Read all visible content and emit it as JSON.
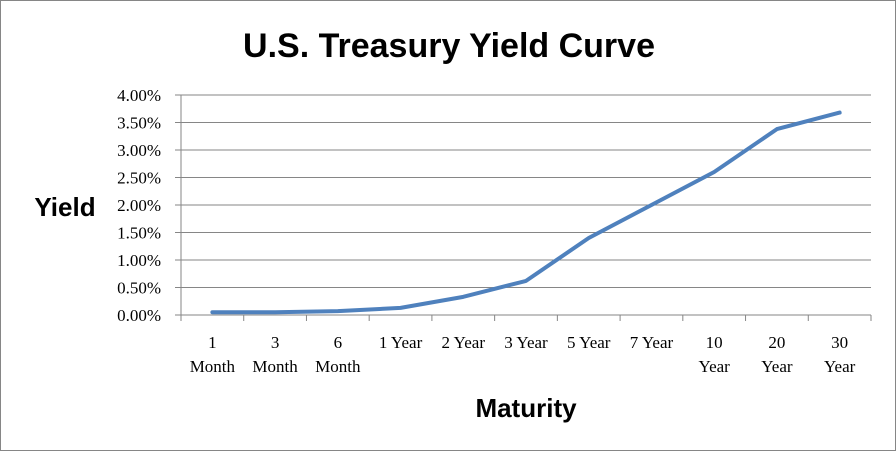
{
  "chart_data": {
    "type": "line",
    "title": "U.S. Treasury Yield Curve",
    "xlabel": "Maturity",
    "ylabel": "Yield",
    "categories": [
      [
        "1",
        "Month"
      ],
      [
        "3",
        "Month"
      ],
      [
        "6",
        "Month"
      ],
      [
        "1 Year"
      ],
      [
        "2 Year"
      ],
      [
        "3 Year"
      ],
      [
        "5 Year"
      ],
      [
        "7 Year"
      ],
      [
        "10",
        "Year"
      ],
      [
        "20",
        "Year"
      ],
      [
        "30",
        "Year"
      ]
    ],
    "series": [
      {
        "values": [
          0.05,
          0.05,
          0.07,
          0.13,
          0.33,
          0.62,
          1.4,
          2.0,
          2.6,
          3.38,
          3.68
        ],
        "color": "#4F81BD"
      }
    ],
    "ylim": [
      0,
      4
    ],
    "yticks": [
      "0.00%",
      "0.50%",
      "1.00%",
      "1.50%",
      "2.00%",
      "2.50%",
      "3.00%",
      "3.50%",
      "4.00%"
    ],
    "grid": true,
    "legend": "none"
  }
}
